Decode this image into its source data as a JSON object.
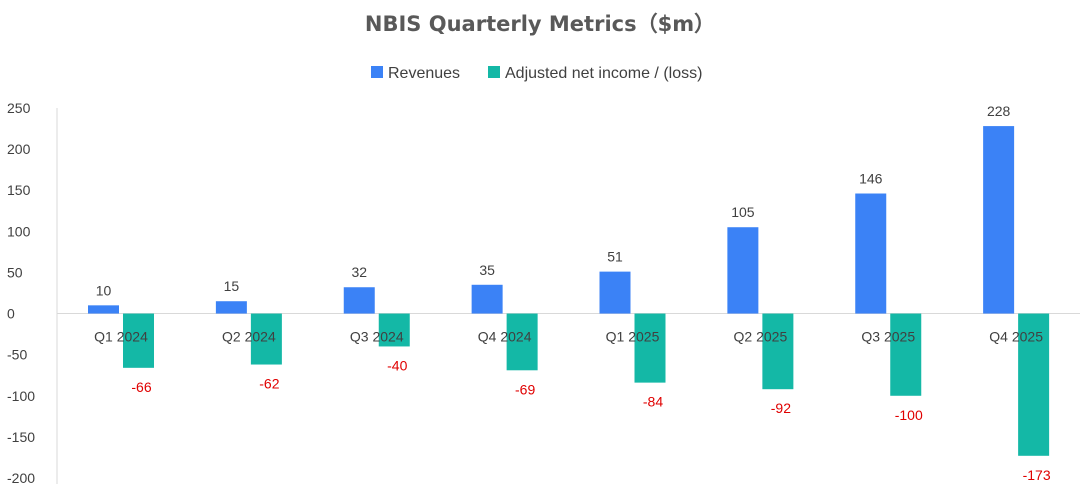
{
  "chart_data": {
    "type": "bar",
    "title": "NBIS Quarterly Metrics（$m）",
    "categories": [
      "Q1 2024",
      "Q2 2024",
      "Q3 2024",
      "Q4 2024",
      "Q1 2025",
      "Q2 2025",
      "Q3 2025",
      "Q4 2025"
    ],
    "series": [
      {
        "name": "Revenues",
        "color": "#3b82f6",
        "values": [
          10,
          15,
          32,
          35,
          51,
          105,
          146,
          228
        ]
      },
      {
        "name": "Adjusted net income / (loss)",
        "color": "#14b8a6",
        "values": [
          -66,
          -62,
          -40,
          -69,
          -84,
          -92,
          -100,
          -173
        ]
      }
    ],
    "ylim": [
      -200,
      250
    ],
    "yticks": [
      250,
      200,
      150,
      100,
      50,
      0,
      -50,
      -100,
      -150,
      -200
    ],
    "grid": false,
    "legend": "top-center",
    "positive_label_color": "#404040",
    "negative_label_color": "#e00000",
    "xlabel": "",
    "ylabel": ""
  }
}
